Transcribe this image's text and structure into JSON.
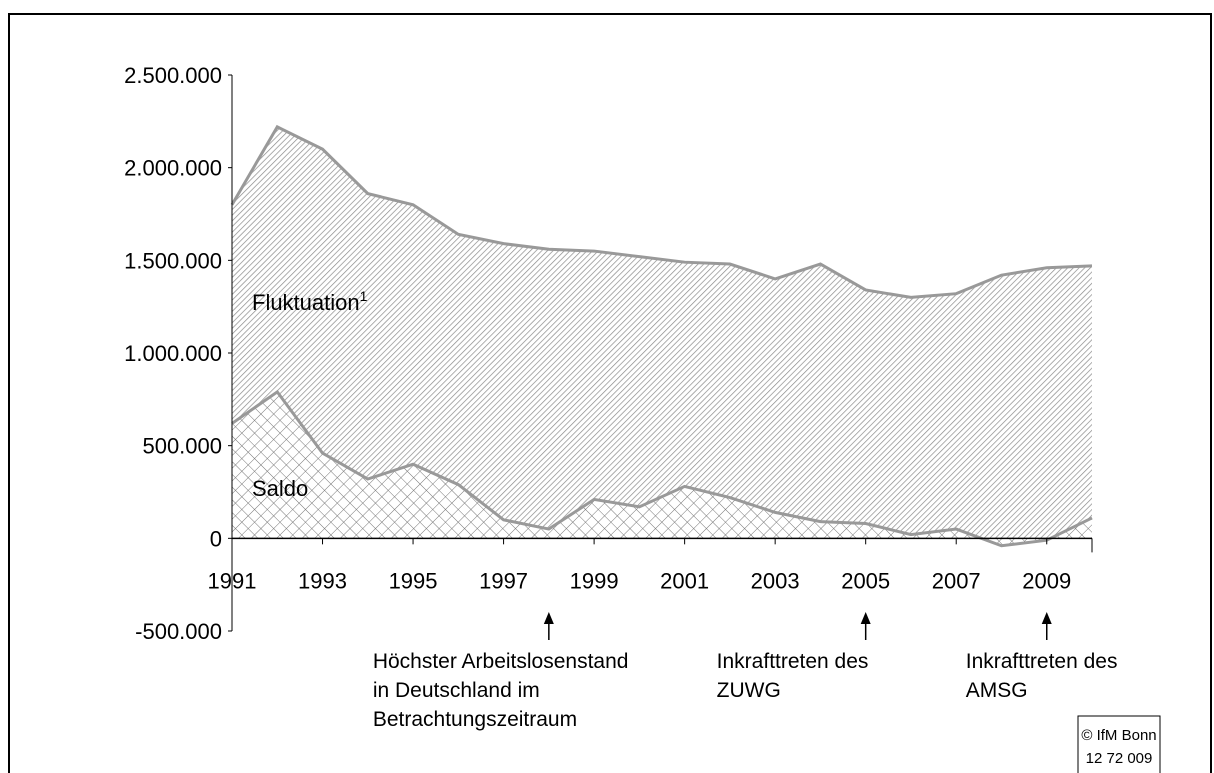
{
  "chart_data": {
    "type": "area",
    "x": [
      1991,
      1992,
      1993,
      1994,
      1995,
      1996,
      1997,
      1998,
      1999,
      2000,
      2001,
      2002,
      2003,
      2004,
      2005,
      2006,
      2007,
      2008,
      2009,
      2010
    ],
    "series": [
      {
        "name": "Fluktuation",
        "name_superscript": "1",
        "color": "#999999",
        "values": [
          1800000,
          2220000,
          2100000,
          1860000,
          1800000,
          1640000,
          1590000,
          1560000,
          1550000,
          1520000,
          1490000,
          1480000,
          1400000,
          1480000,
          1340000,
          1300000,
          1320000,
          1420000,
          1460000,
          1470000
        ]
      },
      {
        "name": "Saldo",
        "color": "#999999",
        "values": [
          620000,
          790000,
          460000,
          320000,
          400000,
          290000,
          100000,
          50000,
          210000,
          170000,
          280000,
          220000,
          140000,
          90000,
          80000,
          20000,
          50000,
          -40000,
          -10000,
          110000
        ]
      }
    ],
    "xlim": [
      1991,
      2010
    ],
    "xticks": [
      1991,
      1993,
      1995,
      1997,
      1999,
      2001,
      2003,
      2005,
      2007,
      2009
    ],
    "ylim": [
      -500000,
      2500000
    ],
    "yticks": [
      {
        "value": -500000,
        "label": "-500.000"
      },
      0,
      {
        "value": 500000,
        "label": "500.000"
      },
      {
        "value": 1000000,
        "label": "1.000.000"
      },
      {
        "value": 1500000,
        "label": "1.500.000"
      },
      {
        "value": 2000000,
        "label": "2.000.000"
      },
      {
        "value": 2500000,
        "label": "2.500.000"
      }
    ],
    "annotations": [
      {
        "x": 1998,
        "lines": [
          "Höchster Arbeitslosenstand",
          "in Deutschland im",
          "Betrachtungszeitraum"
        ]
      },
      {
        "x": 2005,
        "lines": [
          "Inkrafttreten des",
          "ZUWG"
        ]
      },
      {
        "x": 2009,
        "lines": [
          "Inkrafttreten des",
          "AMSG"
        ]
      }
    ],
    "source": [
      "© IfM Bonn",
      "12 72 009"
    ]
  }
}
